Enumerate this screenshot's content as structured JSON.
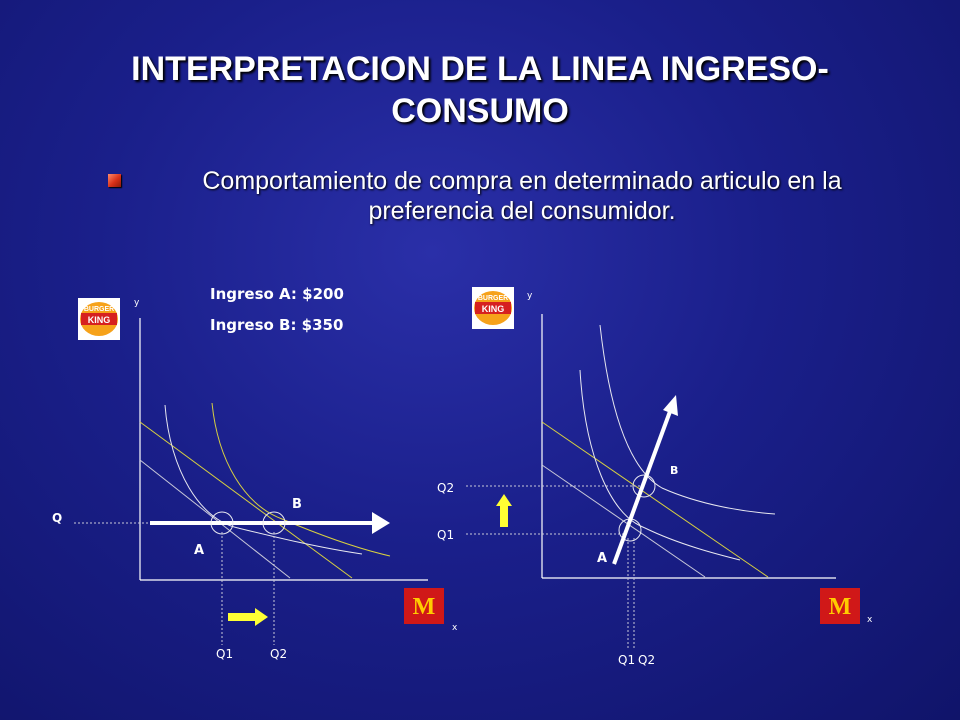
{
  "slide": {
    "title": "INTERPRETACION DE LA LINEA INGRESO-CONSUMO",
    "bullet": "Comportamiento de compra en determinado articulo en la preferencia del consumidor."
  },
  "left_chart": {
    "y_axis_label": "y",
    "x_axis_label": "x",
    "income_a": "Ingreso A: $200",
    "income_b": "Ingreso B: $350",
    "q_label": "Q",
    "point_a": "A",
    "point_b": "B",
    "q1_label": "Q1",
    "q2_label": "Q2"
  },
  "right_chart": {
    "y_axis_label": "y",
    "x_axis_label": "x",
    "point_a": "A",
    "point_b": "B",
    "q1_left_label": "Q1",
    "q2_left_label": "Q2",
    "q1_bottom_label": "Q1",
    "q2_bottom_label": "Q2"
  },
  "logos": {
    "burger_king": "BURGER KING",
    "mcdonalds": "M"
  },
  "colors": {
    "background": "#1a1f8a",
    "curve_white": "#e8e8f0",
    "curve_yellow": "#d8d040",
    "arrow_yellow": "#ffff33",
    "bullet_red": "#d83018"
  }
}
